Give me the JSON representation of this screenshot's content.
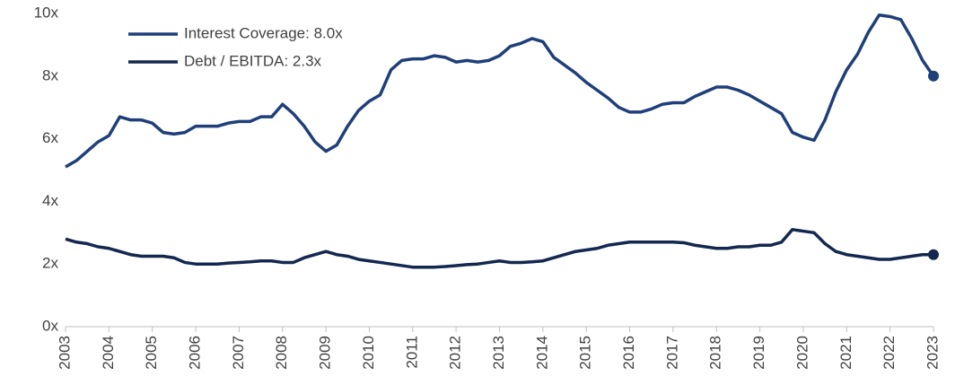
{
  "chart_data": {
    "type": "line",
    "x": [
      2003,
      2003.25,
      2003.5,
      2003.75,
      2004,
      2004.25,
      2004.5,
      2004.75,
      2005,
      2005.25,
      2005.5,
      2005.75,
      2006,
      2006.25,
      2006.5,
      2006.75,
      2007,
      2007.25,
      2007.5,
      2007.75,
      2008,
      2008.25,
      2008.5,
      2008.75,
      2009,
      2009.25,
      2009.5,
      2009.75,
      2010,
      2010.25,
      2010.5,
      2010.75,
      2011,
      2011.25,
      2011.5,
      2011.75,
      2012,
      2012.25,
      2012.5,
      2012.75,
      2013,
      2013.25,
      2013.5,
      2013.75,
      2014,
      2014.25,
      2014.5,
      2014.75,
      2015,
      2015.25,
      2015.5,
      2015.75,
      2016,
      2016.25,
      2016.5,
      2016.75,
      2017,
      2017.25,
      2017.5,
      2017.75,
      2018,
      2018.25,
      2018.5,
      2018.75,
      2019,
      2019.25,
      2019.5,
      2019.75,
      2020,
      2020.25,
      2020.5,
      2020.75,
      2021,
      2021.25,
      2021.5,
      2021.75,
      2022,
      2022.25,
      2022.5,
      2022.75,
      2023
    ],
    "series": [
      {
        "name": "Interest Coverage: 8.0x",
        "color": "#1f3f7a",
        "values": [
          5.1,
          5.3,
          5.6,
          5.9,
          6.1,
          6.7,
          6.6,
          6.6,
          6.5,
          6.2,
          6.15,
          6.2,
          6.4,
          6.4,
          6.4,
          6.5,
          6.55,
          6.55,
          6.7,
          6.7,
          7.1,
          6.8,
          6.4,
          5.9,
          5.6,
          5.8,
          6.4,
          6.9,
          7.2,
          7.4,
          8.2,
          8.5,
          8.55,
          8.55,
          8.65,
          8.6,
          8.45,
          8.5,
          8.45,
          8.5,
          8.65,
          8.95,
          9.05,
          9.2,
          9.1,
          8.6,
          8.35,
          8.1,
          7.8,
          7.55,
          7.3,
          7.0,
          6.85,
          6.85,
          6.95,
          7.1,
          7.15,
          7.15,
          7.35,
          7.5,
          7.65,
          7.65,
          7.55,
          7.4,
          7.2,
          7.0,
          6.8,
          6.2,
          6.05,
          5.95,
          6.6,
          7.5,
          8.2,
          8.7,
          9.4,
          9.95,
          9.9,
          9.8,
          9.2,
          8.5,
          8.0
        ]
      },
      {
        "name": "Debt / EBITDA: 2.3x",
        "color": "#14284f",
        "values": [
          2.8,
          2.7,
          2.65,
          2.55,
          2.5,
          2.4,
          2.3,
          2.25,
          2.25,
          2.25,
          2.2,
          2.05,
          2.0,
          2.0,
          2.0,
          2.03,
          2.05,
          2.07,
          2.1,
          2.1,
          2.05,
          2.05,
          2.2,
          2.3,
          2.4,
          2.3,
          2.25,
          2.15,
          2.1,
          2.05,
          2.0,
          1.95,
          1.9,
          1.9,
          1.9,
          1.92,
          1.95,
          1.98,
          2.0,
          2.05,
          2.1,
          2.05,
          2.05,
          2.07,
          2.1,
          2.2,
          2.3,
          2.4,
          2.45,
          2.5,
          2.6,
          2.65,
          2.7,
          2.7,
          2.7,
          2.7,
          2.7,
          2.68,
          2.6,
          2.55,
          2.5,
          2.5,
          2.55,
          2.55,
          2.6,
          2.6,
          2.7,
          3.1,
          3.05,
          3.0,
          2.65,
          2.4,
          2.3,
          2.25,
          2.2,
          2.15,
          2.15,
          2.2,
          2.25,
          2.3,
          2.3
        ]
      }
    ],
    "xlim": [
      2003,
      2023
    ],
    "xticks": [
      2003,
      2004,
      2005,
      2006,
      2007,
      2008,
      2009,
      2010,
      2011,
      2012,
      2013,
      2014,
      2015,
      2016,
      2017,
      2018,
      2019,
      2020,
      2021,
      2022,
      2023
    ],
    "ylim": [
      0,
      10
    ],
    "yticks": [
      {
        "value": 0,
        "label": "0x"
      },
      {
        "value": 2,
        "label": "2x"
      },
      {
        "value": 4,
        "label": "4x"
      },
      {
        "value": 6,
        "label": "6x"
      },
      {
        "value": 8,
        "label": "8x"
      },
      {
        "value": 10,
        "label": "10x"
      }
    ],
    "grid": false,
    "legend": "upper left",
    "end_marker": true
  }
}
